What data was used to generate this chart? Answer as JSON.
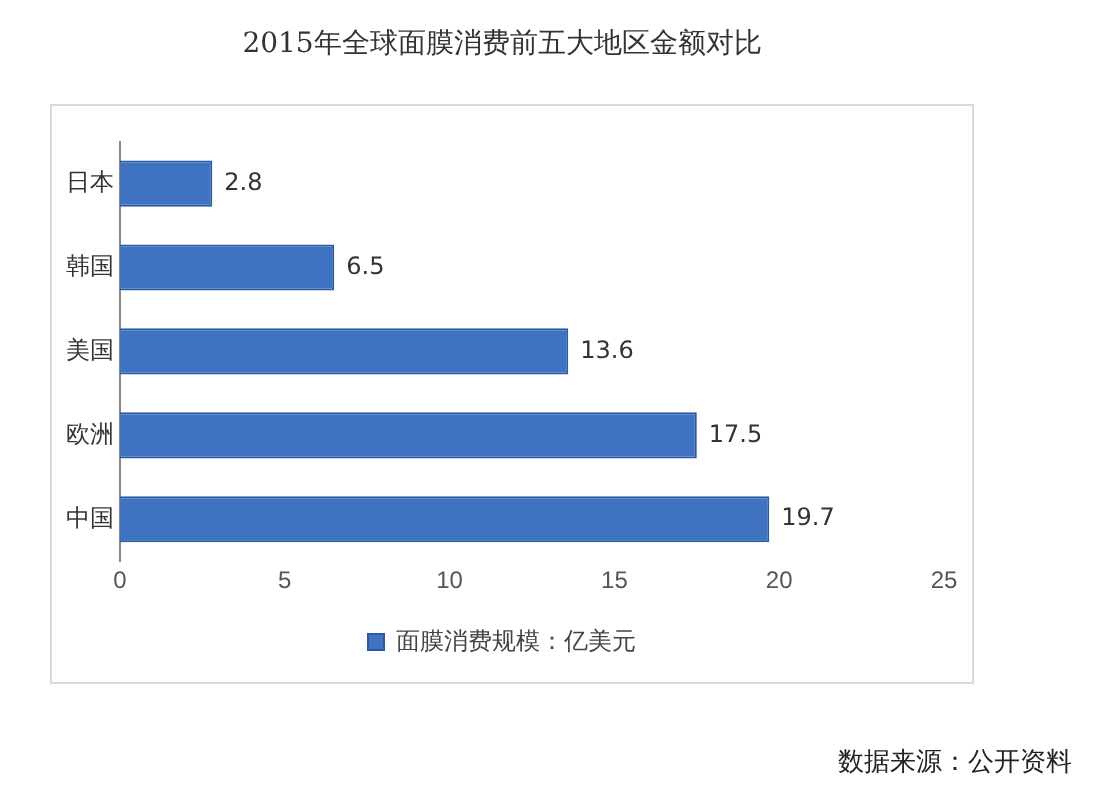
{
  "chart_data": {
    "type": "bar",
    "orientation": "horizontal",
    "title": "2015年全球面膜消费前五大地区金额对比",
    "categories": [
      "日本",
      "韩国",
      "美国",
      "欧洲",
      "中国"
    ],
    "series": [
      {
        "name": "面膜消费规模：亿美元",
        "color": "#3f73c2",
        "values": [
          2.8,
          6.5,
          13.6,
          17.5,
          19.7
        ]
      }
    ],
    "xlim": [
      0,
      25
    ],
    "xticks": [
      0,
      5,
      10,
      15,
      20,
      25
    ],
    "grid": false,
    "legend": "bottom",
    "data_labels": true,
    "annotations": [
      "数据来源：公开资料"
    ]
  }
}
